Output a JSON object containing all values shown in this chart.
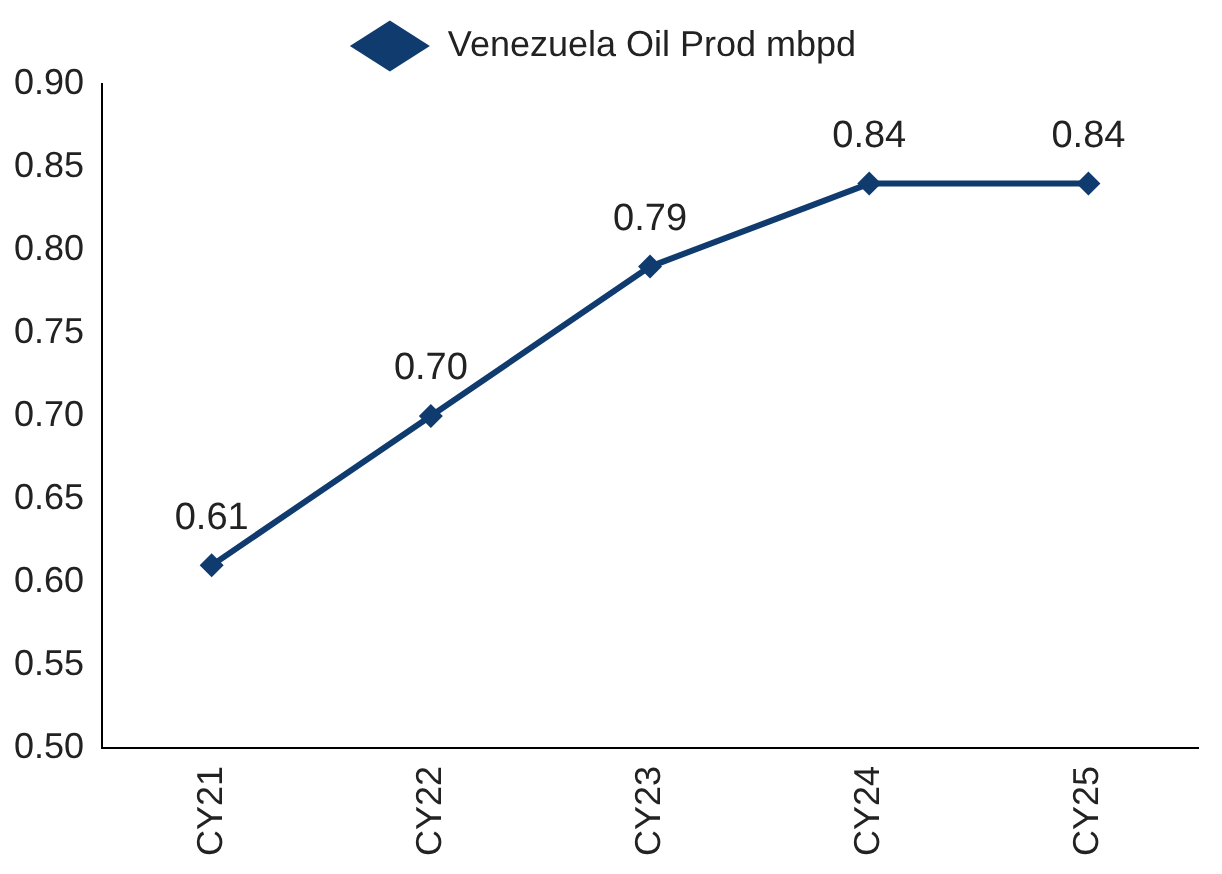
{
  "chart_data": {
    "type": "line",
    "categories": [
      "CY21",
      "CY22",
      "CY23",
      "CY24",
      "CY25"
    ],
    "series": [
      {
        "name": "Venezuela Oil Prod mbpd",
        "color": "#0f3b6e",
        "values": [
          0.61,
          0.7,
          0.79,
          0.84,
          0.84
        ]
      }
    ],
    "ylim": [
      0.5,
      0.9
    ],
    "yticks": [
      {
        "value": 0.5,
        "label": "0.50"
      },
      {
        "value": 0.55,
        "label": "0.55"
      },
      {
        "value": 0.6,
        "label": "0.60"
      },
      {
        "value": 0.65,
        "label": "0.65"
      },
      {
        "value": 0.7,
        "label": "0.70"
      },
      {
        "value": 0.75,
        "label": "0.75"
      },
      {
        "value": 0.8,
        "label": "0.80"
      },
      {
        "value": 0.85,
        "label": "0.85"
      },
      {
        "value": 0.9,
        "label": "0.90"
      }
    ],
    "value_labels": [
      "0.61",
      "0.70",
      "0.79",
      "0.84",
      "0.84"
    ],
    "grid": false,
    "legend": "top",
    "marker": "diamond",
    "line_style": "solid"
  }
}
